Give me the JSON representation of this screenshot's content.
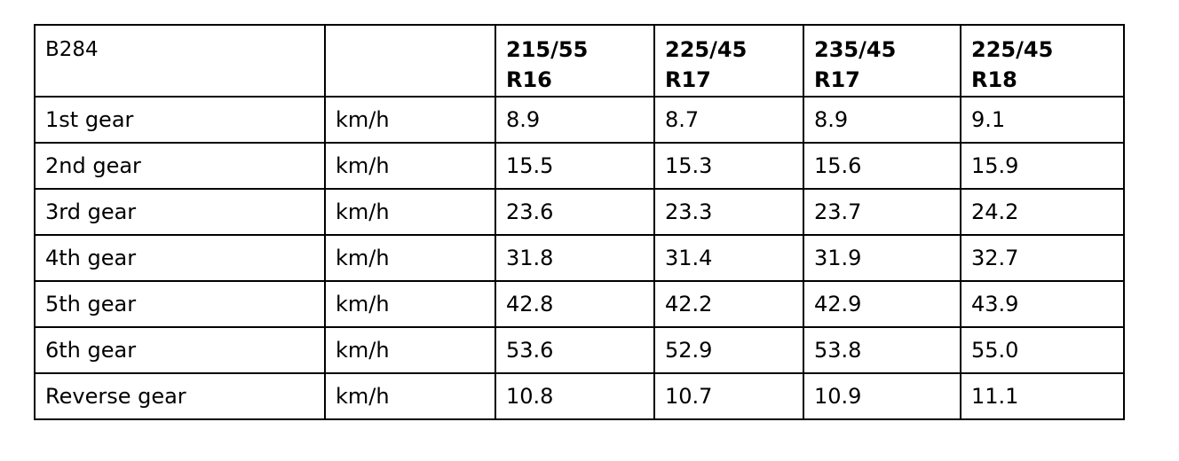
{
  "table": {
    "header": {
      "title": "B284",
      "columns": [
        "215/55 R16",
        "225/45 R17",
        "235/45 R17",
        "225/45 R18"
      ]
    },
    "rows": [
      [
        "1st gear",
        "km/h",
        "8.9",
        "8.7",
        "8.9",
        "9.1"
      ],
      [
        "2nd gear",
        "km/h",
        "15.5",
        "15.3",
        "15.6",
        "15.9"
      ],
      [
        "3rd gear",
        "km/h",
        "23.6",
        "23.3",
        "23.7",
        "24.2"
      ],
      [
        "4th gear",
        "km/h",
        "31.8",
        "31.4",
        "31.9",
        "32.7"
      ],
      [
        "5th gear",
        "km/h",
        "42.8",
        "42.2",
        "42.9",
        "43.9"
      ],
      [
        "6th gear",
        "km/h",
        "53.6",
        "52.9",
        "53.8",
        "55.0"
      ],
      [
        "Reverse gear",
        "km/h",
        "10.8",
        "10.7",
        "10.9",
        "11.1"
      ]
    ]
  }
}
